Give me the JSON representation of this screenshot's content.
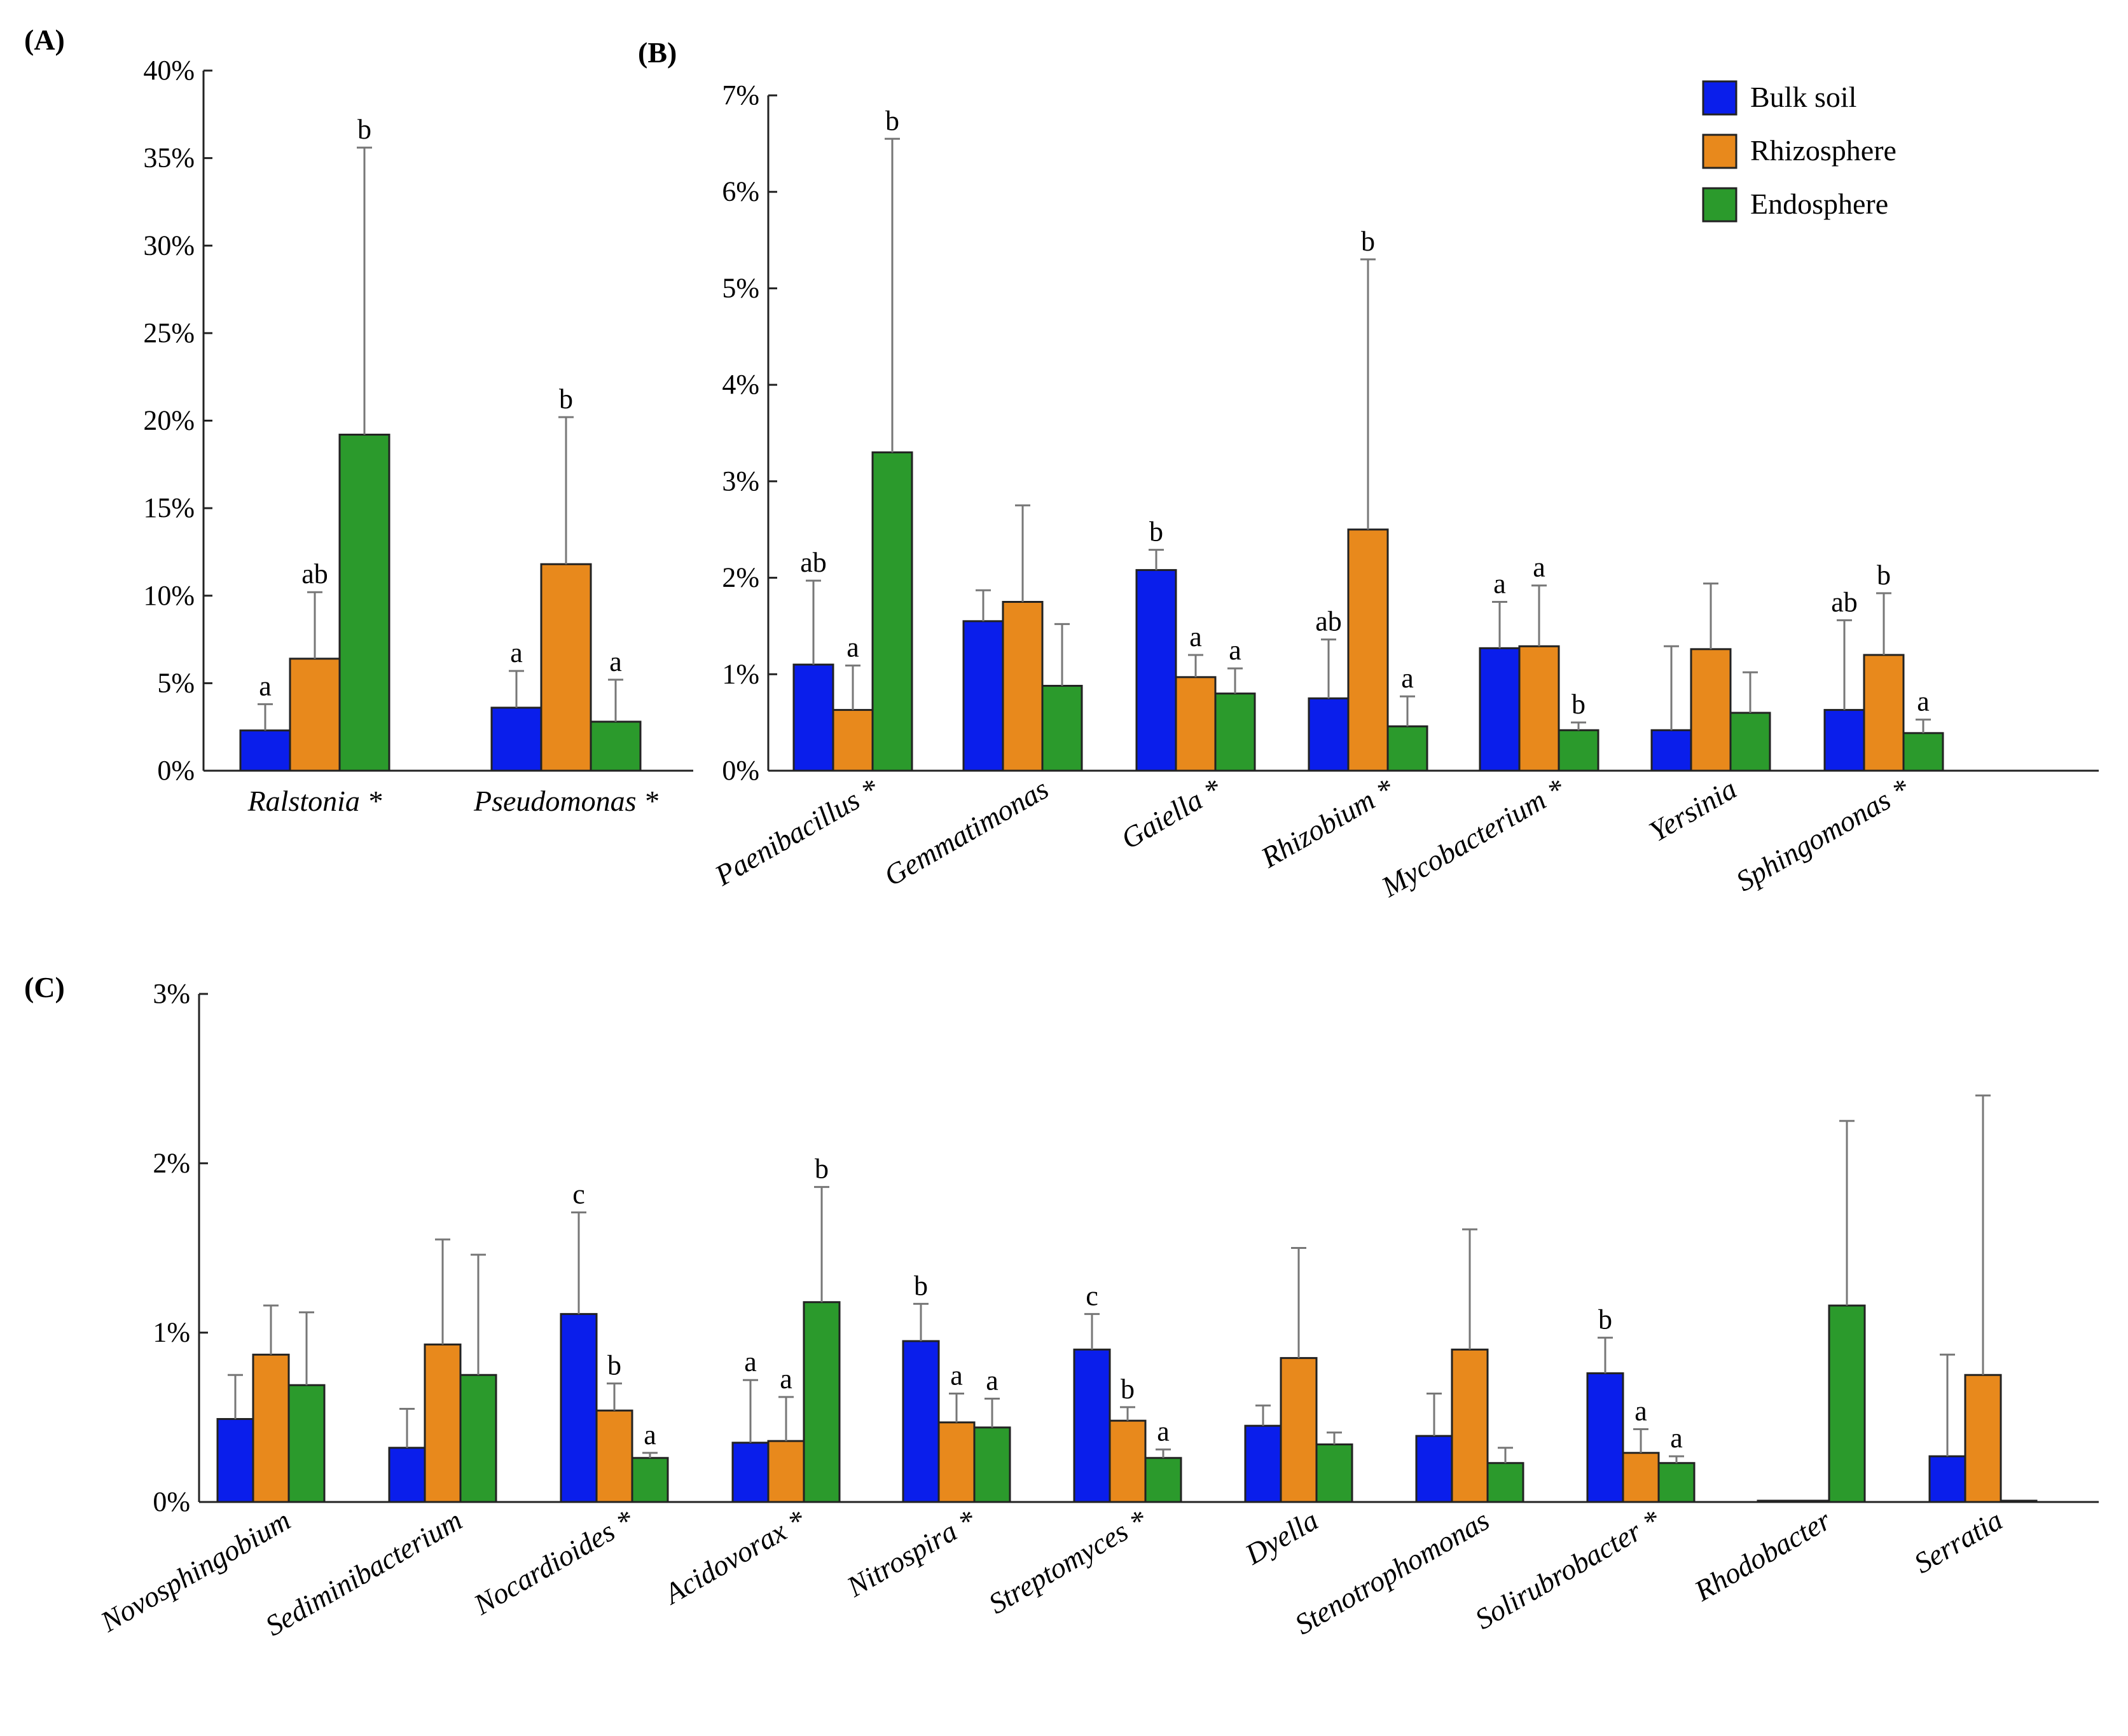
{
  "colors": {
    "bulk_soil": "#0A1EEB",
    "rhizosphere": "#E8891C",
    "endosphere": "#2B9A2C"
  },
  "legend": {
    "items": [
      {
        "label": "Bulk soil",
        "color": "#0A1EEB"
      },
      {
        "label": "Rhizosphere",
        "color": "#E8891C"
      },
      {
        "label": "Endosphere",
        "color": "#2B9A2C"
      }
    ]
  },
  "chart_data": [
    {
      "panel": "(A)",
      "type": "bar",
      "ylim": [
        0,
        40
      ],
      "yticks": [
        0,
        5,
        10,
        15,
        20,
        25,
        30,
        35,
        40
      ],
      "ytick_labels": [
        "0%",
        "5%",
        "10%",
        "15%",
        "20%",
        "25%",
        "30%",
        "35%",
        "40%"
      ],
      "categories": [
        "Ralstonia *",
        "Pseudomonas *"
      ],
      "series": [
        {
          "name": "Bulk soil",
          "values": [
            2.3,
            3.6
          ],
          "errors": [
            1.5,
            2.1
          ],
          "sig": [
            "a",
            "a"
          ]
        },
        {
          "name": "Rhizosphere",
          "values": [
            6.4,
            11.8
          ],
          "errors": [
            3.8,
            8.4
          ],
          "sig": [
            "ab",
            "b"
          ]
        },
        {
          "name": "Endosphere",
          "values": [
            19.2,
            2.8
          ],
          "errors": [
            16.4,
            2.4
          ],
          "sig": [
            "b",
            "a"
          ]
        }
      ]
    },
    {
      "panel": "(B)",
      "type": "bar",
      "ylim": [
        0,
        7
      ],
      "yticks": [
        0,
        1,
        2,
        3,
        4,
        5,
        6,
        7
      ],
      "ytick_labels": [
        "0%",
        "1%",
        "2%",
        "3%",
        "4%",
        "5%",
        "6%",
        "7%"
      ],
      "categories": [
        "Paenibacillus *",
        "Gemmatimonas",
        "Gaiella *",
        "Rhizobium *",
        "Mycobacterium *",
        "Yersinia",
        "Sphingomonas *"
      ],
      "series": [
        {
          "name": "Bulk soil",
          "values": [
            1.1,
            1.55,
            2.08,
            0.75,
            1.27,
            0.42,
            0.63
          ],
          "errors": [
            0.87,
            0.32,
            0.21,
            0.61,
            0.48,
            0.87,
            0.93
          ],
          "sig": [
            "ab",
            "",
            "b",
            "ab",
            "a",
            "",
            "ab"
          ]
        },
        {
          "name": "Rhizosphere",
          "values": [
            0.63,
            1.75,
            0.97,
            2.5,
            1.29,
            1.26,
            1.2
          ],
          "errors": [
            0.46,
            1.0,
            0.23,
            2.8,
            0.63,
            0.68,
            0.64
          ],
          "sig": [
            "a",
            "",
            "a",
            "b",
            "a",
            "",
            "b"
          ]
        },
        {
          "name": "Endosphere",
          "values": [
            3.3,
            0.88,
            0.8,
            0.46,
            0.42,
            0.6,
            0.39
          ],
          "errors": [
            3.25,
            0.64,
            0.26,
            0.31,
            0.08,
            0.42,
            0.14
          ],
          "sig": [
            "b",
            "",
            "a",
            "a",
            "b",
            "",
            "a"
          ]
        }
      ]
    },
    {
      "panel": "(C)",
      "type": "bar",
      "ylim": [
        0,
        3
      ],
      "yticks": [
        0,
        1,
        2,
        3
      ],
      "ytick_labels": [
        "0%",
        "1%",
        "2%",
        "3%"
      ],
      "categories": [
        "Novosphingobium",
        "Sediminibacterium",
        "Nocardioides *",
        "Acidovorax *",
        "Nitrospira *",
        "Streptomyces *",
        "Dyella",
        "Stenotrophomonas",
        "Solirubrobacter *",
        "Rhodobacter",
        "Serratia"
      ],
      "series": [
        {
          "name": "Bulk soil",
          "values": [
            0.49,
            0.32,
            1.11,
            0.35,
            0.95,
            0.9,
            0.45,
            0.39,
            0.76,
            0.0,
            0.27
          ],
          "errors": [
            0.26,
            0.23,
            0.6,
            0.37,
            0.22,
            0.21,
            0.12,
            0.25,
            0.21,
            0.0,
            0.6
          ],
          "sig": [
            "",
            "",
            "c",
            "a",
            "b",
            "c",
            "",
            "",
            "b",
            "",
            ""
          ]
        },
        {
          "name": "Rhizosphere",
          "values": [
            0.87,
            0.93,
            0.54,
            0.36,
            0.47,
            0.48,
            0.85,
            0.9,
            0.29,
            0.0,
            0.75
          ],
          "errors": [
            0.29,
            0.62,
            0.16,
            0.26,
            0.17,
            0.08,
            0.65,
            0.71,
            0.14,
            0.0,
            1.65
          ],
          "sig": [
            "",
            "",
            "b",
            "a",
            "a",
            "b",
            "",
            "",
            "a",
            "",
            ""
          ]
        },
        {
          "name": "Endosphere",
          "values": [
            0.69,
            0.75,
            0.26,
            1.18,
            0.44,
            0.26,
            0.34,
            0.23,
            0.23,
            1.16,
            0.0
          ],
          "errors": [
            0.43,
            0.71,
            0.03,
            0.68,
            0.17,
            0.05,
            0.07,
            0.09,
            0.04,
            1.09,
            0.0
          ],
          "sig": [
            "",
            "",
            "a",
            "b",
            "a",
            "a",
            "",
            "",
            "a",
            "",
            ""
          ]
        }
      ]
    }
  ]
}
